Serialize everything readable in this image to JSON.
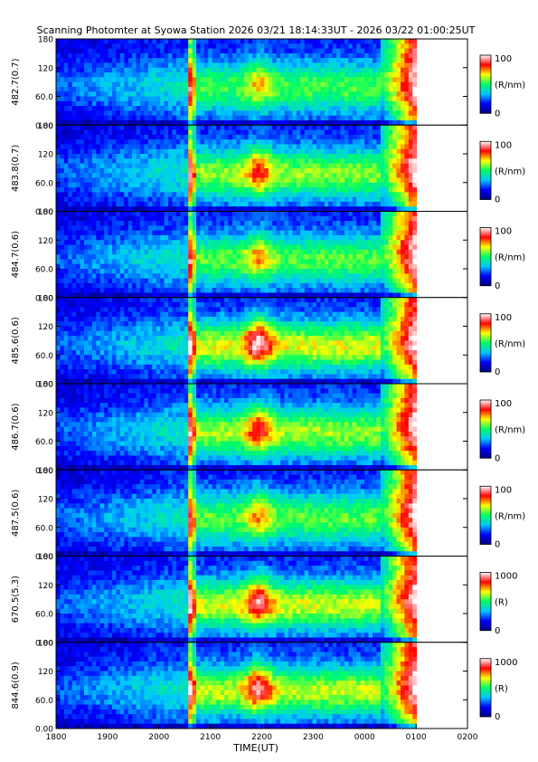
{
  "chart_data": {
    "type": "heatmap",
    "title": "Scanning Photomter at Syowa Station  2026 03/21 18:14:33UT - 2026 03/22 01:00:25UT",
    "xlabel": "TIME(UT)",
    "x_tick_labels": [
      "1800",
      "1900",
      "2000",
      "2100",
      "2200",
      "2300",
      "0000",
      "0100",
      "0200"
    ],
    "y_tick_labels": [
      "0.00",
      "60.0",
      "120",
      "180"
    ],
    "ylim": [
      0,
      180
    ],
    "colormap": [
      "#000080",
      "#0000ff",
      "#00c8ff",
      "#00ff60",
      "#ffff00",
      "#ff0000",
      "#ffffff"
    ],
    "panels": [
      {
        "ylabel": "482.7(0.7)",
        "cbar_max": "100",
        "cbar_min": "0",
        "cbar_unit": "(R/nm)",
        "intensity": 0.55
      },
      {
        "ylabel": "483.8(0.7)",
        "cbar_max": "100",
        "cbar_min": "0",
        "cbar_unit": "(R/nm)",
        "intensity": 0.75
      },
      {
        "ylabel": "484.7(0.6)",
        "cbar_max": "100",
        "cbar_min": "0",
        "cbar_unit": "(R/nm)",
        "intensity": 0.6
      },
      {
        "ylabel": "485.6(0.6)",
        "cbar_max": "100",
        "cbar_min": "0",
        "cbar_unit": "(R/nm)",
        "intensity": 1.0
      },
      {
        "ylabel": "486.7(0.6)",
        "cbar_max": "100",
        "cbar_min": "0",
        "cbar_unit": "(R/nm)",
        "intensity": 0.8
      },
      {
        "ylabel": "487.5(0.6)",
        "cbar_max": "100",
        "cbar_min": "0",
        "cbar_unit": "(R/nm)",
        "intensity": 0.6
      },
      {
        "ylabel": "670.5(5.3)",
        "cbar_max": "1000",
        "cbar_min": "0",
        "cbar_unit": "(R)",
        "intensity": 0.95
      },
      {
        "ylabel": "844.6(0.9)",
        "cbar_max": "1000",
        "cbar_min": "0",
        "cbar_unit": "(R)",
        "intensity": 0.9
      }
    ]
  }
}
